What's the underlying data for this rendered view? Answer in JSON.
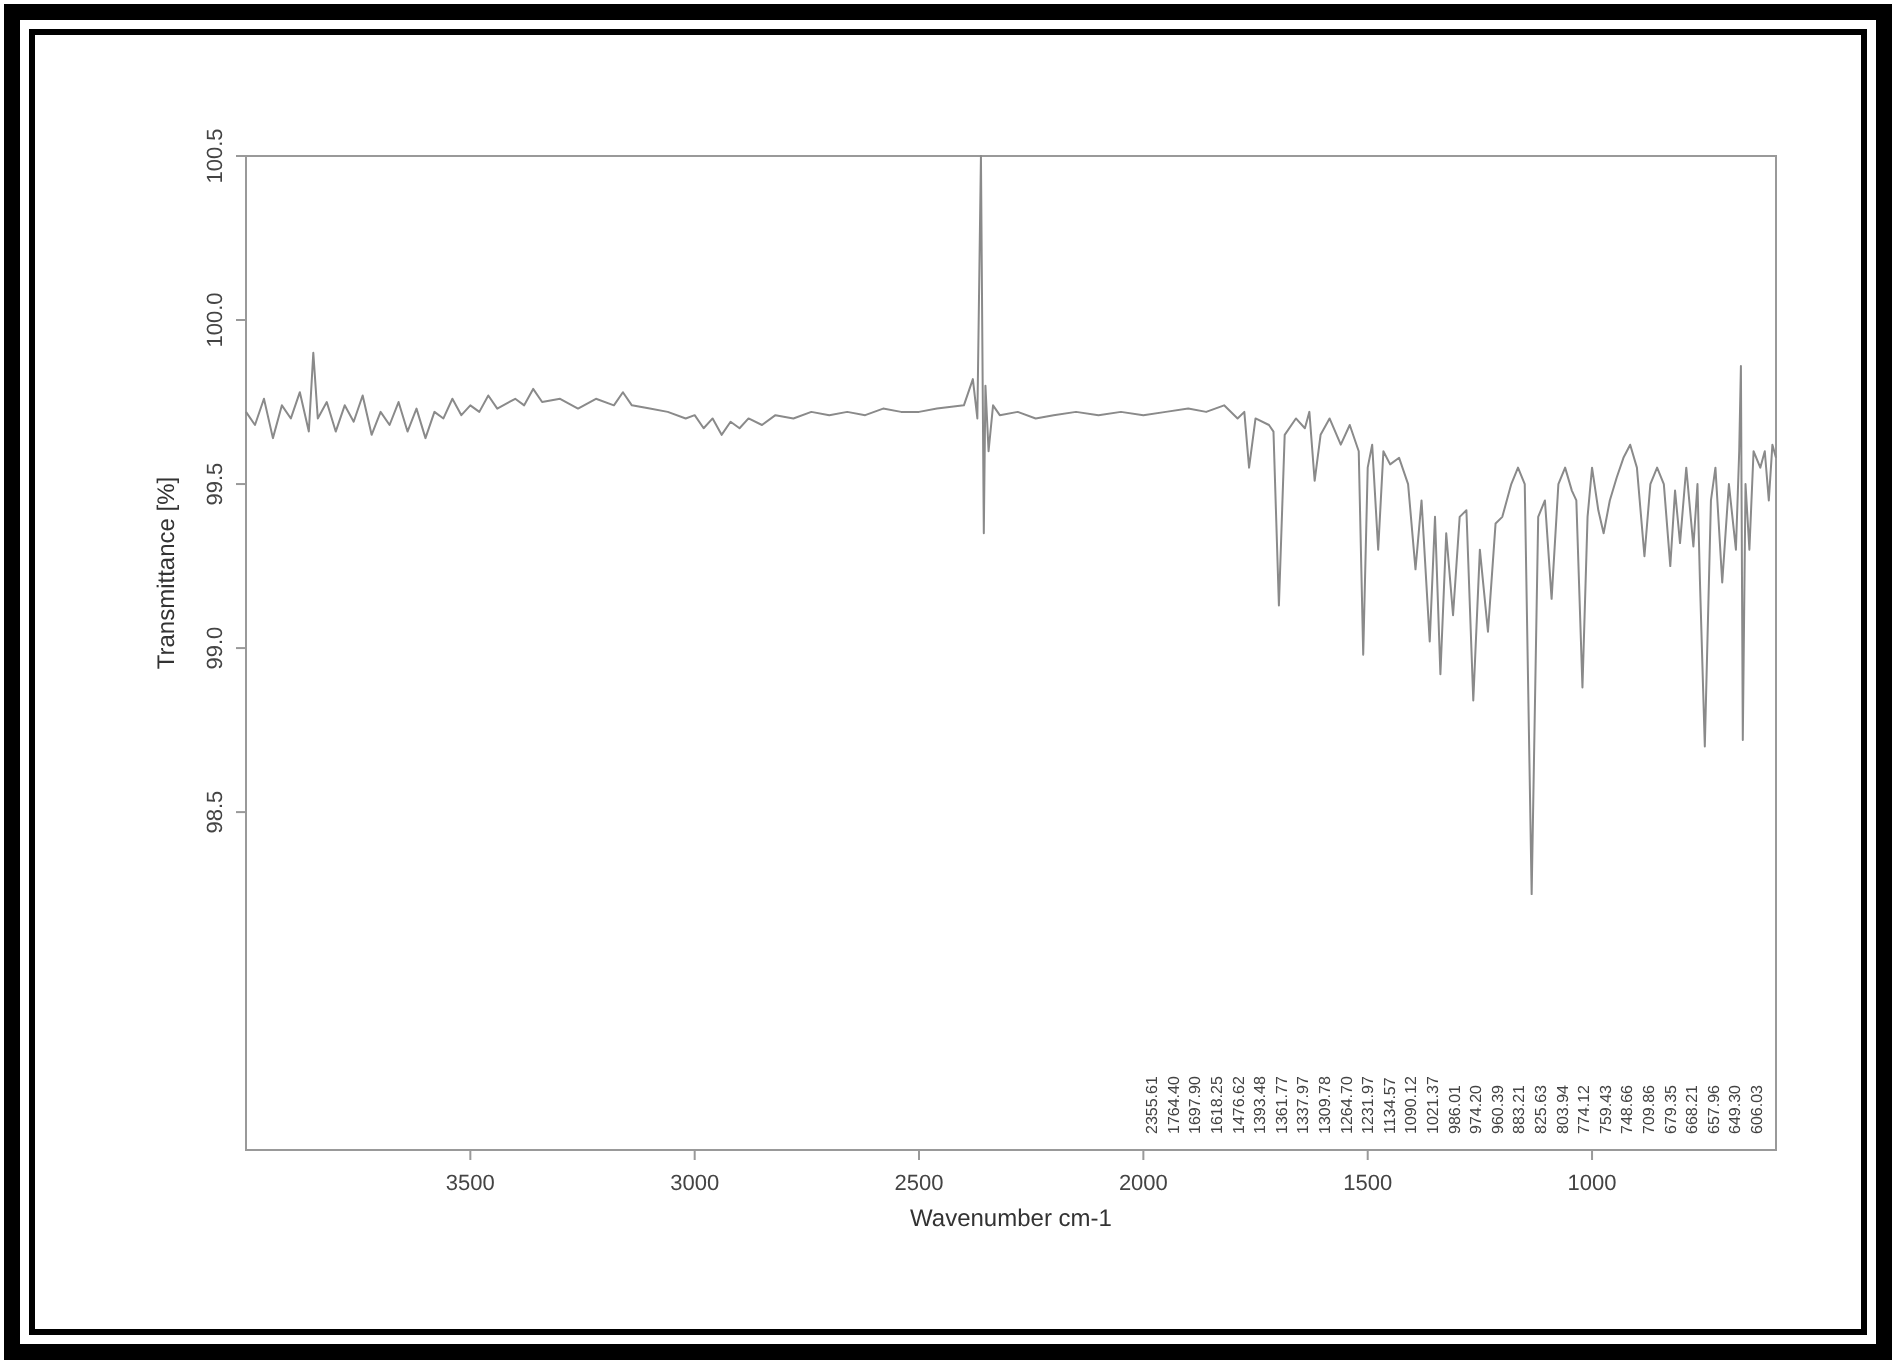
{
  "chart_data": {
    "type": "line",
    "xlabel": "Wavenumber cm-1",
    "ylabel": "Transmittance [%]",
    "xlim": [
      4000,
      590
    ],
    "xticks": [
      3500,
      3000,
      2500,
      2000,
      1500,
      1000
    ],
    "ylim": [
      97.47,
      100.5
    ],
    "yticks": [
      98.5,
      {
        "value": 99.0,
        "label": "99.0"
      },
      99.5,
      {
        "value": 100.0,
        "label": "100.0"
      },
      100.5
    ],
    "grid": false,
    "series": [
      {
        "color": "#8a8a8a",
        "x": [
          4000,
          3980,
          3960,
          3940,
          3920,
          3900,
          3880,
          3860,
          3850,
          3840,
          3820,
          3800,
          3780,
          3760,
          3740,
          3720,
          3700,
          3680,
          3660,
          3640,
          3620,
          3600,
          3580,
          3560,
          3540,
          3520,
          3500,
          3480,
          3460,
          3440,
          3400,
          3380,
          3360,
          3340,
          3300,
          3260,
          3220,
          3180,
          3160,
          3140,
          3100,
          3060,
          3020,
          3000,
          2980,
          2960,
          2940,
          2920,
          2900,
          2880,
          2850,
          2820,
          2780,
          2740,
          2700,
          2660,
          2620,
          2580,
          2540,
          2500,
          2460,
          2400,
          2380,
          2370,
          2362,
          2355.61,
          2352,
          2345,
          2335,
          2320,
          2280,
          2240,
          2200,
          2150,
          2100,
          2050,
          2000,
          1950,
          1900,
          1860,
          1820,
          1790,
          1775,
          1764.4,
          1750,
          1720,
          1710,
          1697.9,
          1685,
          1660,
          1640,
          1630,
          1618.25,
          1605,
          1585,
          1560,
          1540,
          1520,
          1510,
          1500,
          1490,
          1476.62,
          1465,
          1450,
          1430,
          1410,
          1393.48,
          1380,
          1361.77,
          1350,
          1337.97,
          1325,
          1309.78,
          1295,
          1280,
          1264.7,
          1250,
          1231.97,
          1215,
          1200,
          1180,
          1165,
          1150,
          1134.57,
          1120,
          1105,
          1090.12,
          1075,
          1060,
          1045,
          1035,
          1021.37,
          1010,
          1000,
          986.01,
          974.2,
          960.39,
          945,
          930,
          915,
          900,
          883.21,
          870,
          855,
          840,
          825.63,
          815,
          803.94,
          790,
          774.12,
          765,
          759.43,
          748.66,
          735,
          725,
          709.86,
          695,
          679.35,
          672,
          668.21,
          664,
          657.96,
          649.3,
          640,
          625,
          615,
          606.03,
          598,
          590
        ],
        "values": [
          99.72,
          99.68,
          99.76,
          99.64,
          99.74,
          99.7,
          99.78,
          99.66,
          99.9,
          99.7,
          99.75,
          99.66,
          99.74,
          99.69,
          99.77,
          99.65,
          99.72,
          99.68,
          99.75,
          99.66,
          99.73,
          99.64,
          99.72,
          99.7,
          99.76,
          99.71,
          99.74,
          99.72,
          99.77,
          99.73,
          99.76,
          99.74,
          99.79,
          99.75,
          99.76,
          99.73,
          99.76,
          99.74,
          99.78,
          99.74,
          99.73,
          99.72,
          99.7,
          99.71,
          99.67,
          99.7,
          99.65,
          99.69,
          99.67,
          99.7,
          99.68,
          99.71,
          99.7,
          99.72,
          99.71,
          99.72,
          99.71,
          99.73,
          99.72,
          99.72,
          99.73,
          99.74,
          99.82,
          99.7,
          100.5,
          99.35,
          99.8,
          99.6,
          99.74,
          99.71,
          99.72,
          99.7,
          99.71,
          99.72,
          99.71,
          99.72,
          99.71,
          99.72,
          99.73,
          99.72,
          99.74,
          99.7,
          99.72,
          99.55,
          99.7,
          99.68,
          99.66,
          99.13,
          99.65,
          99.7,
          99.67,
          99.72,
          99.51,
          99.65,
          99.7,
          99.62,
          99.68,
          99.6,
          98.98,
          99.55,
          99.62,
          99.3,
          99.6,
          99.56,
          99.58,
          99.5,
          99.24,
          99.45,
          99.02,
          99.4,
          98.92,
          99.35,
          99.1,
          99.4,
          99.42,
          98.84,
          99.3,
          99.05,
          99.38,
          99.4,
          99.5,
          99.55,
          99.5,
          98.25,
          99.4,
          99.45,
          99.15,
          99.5,
          99.55,
          99.48,
          99.45,
          98.88,
          99.4,
          99.55,
          99.42,
          99.35,
          99.45,
          99.52,
          99.58,
          99.62,
          99.55,
          99.28,
          99.5,
          99.55,
          99.5,
          99.25,
          99.48,
          99.32,
          99.55,
          99.31,
          99.5,
          99.2,
          98.7,
          99.45,
          99.55,
          99.2,
          99.5,
          99.3,
          99.6,
          99.86,
          98.72,
          99.5,
          99.3,
          99.6,
          99.55,
          99.6,
          99.45,
          99.62,
          99.58
        ]
      }
    ],
    "annotations": [
      "2355.61",
      "1764.40",
      "1697.90",
      "1618.25",
      "1476.62",
      "1393.48",
      "1361.77",
      "1337.97",
      "1309.78",
      "1264.70",
      "1231.97",
      "1134.57",
      "1090.12",
      "1021.37",
      "986.01",
      "974.20",
      "960.39",
      "883.21",
      "825.63",
      "803.94",
      "774.12",
      "759.43",
      "748.66",
      "709.86",
      "679.35",
      "668.21",
      "657.96",
      "649.30",
      "606.03"
    ]
  }
}
